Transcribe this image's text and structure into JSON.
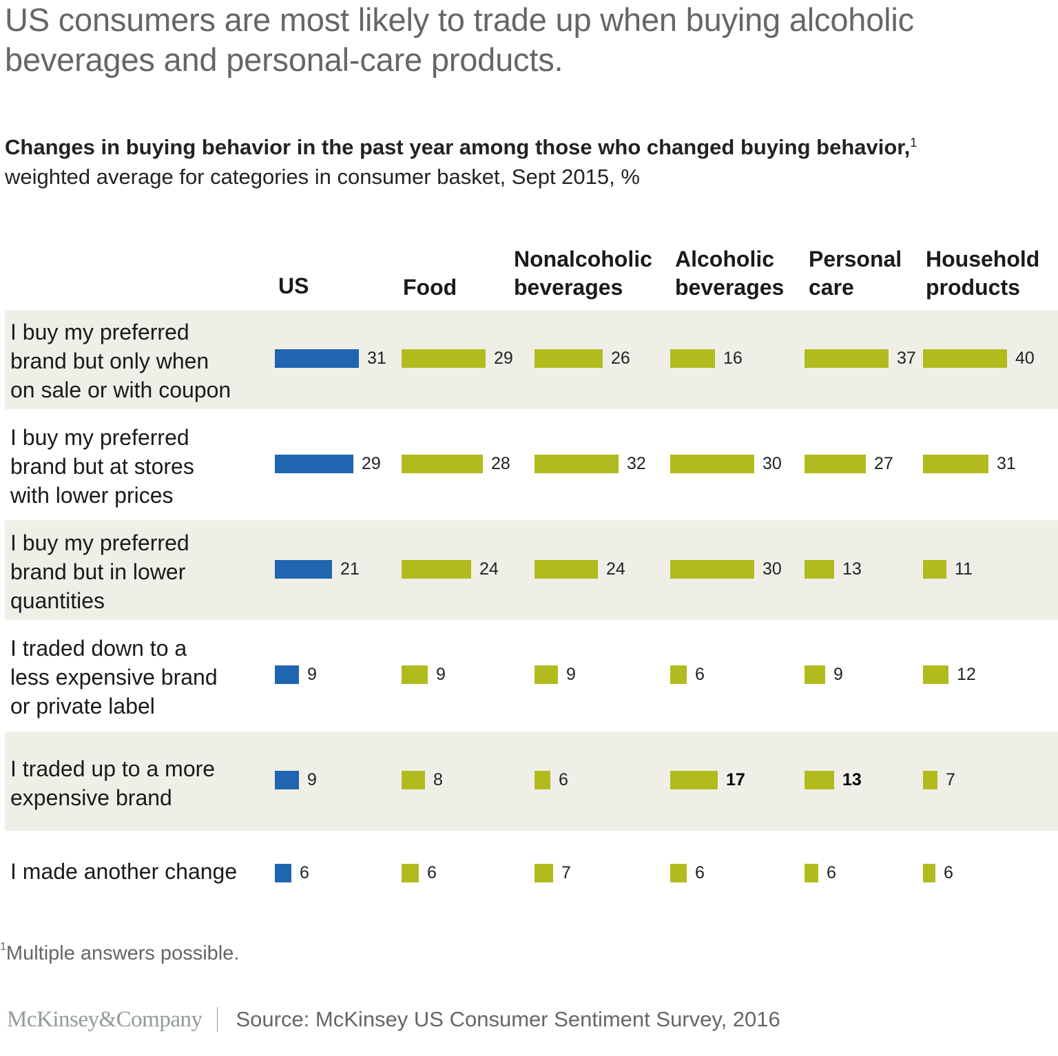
{
  "title": "US consumers are most likely to trade up when buying alcoholic beverages and personal-care products.",
  "subtitle": {
    "bold": "Changes in buying behavior in the past year among those who changed buying behavior,",
    "superscript": "1",
    "rest": "weighted average for categories in consumer basket, Sept 2015, %"
  },
  "colors": {
    "us": "#1F65B0",
    "category": "#B2BB1E",
    "shaded_row": "#EFEFE8"
  },
  "chart_data": {
    "type": "bar",
    "orientation": "horizontal",
    "title": "Changes in buying behavior in the past year among those who changed buying behavior, weighted average for categories in consumer basket, Sept 2015, %",
    "columns": [
      {
        "line1": "",
        "line2": "US"
      },
      {
        "line1": "",
        "line2": "Food"
      },
      {
        "line1": "Nonalcoholic",
        "line2": "beverages"
      },
      {
        "line1": "Alcoholic",
        "line2": "beverages"
      },
      {
        "line1": "Personal",
        "line2": "care"
      },
      {
        "line1": "Household",
        "line2": "products"
      }
    ],
    "series_names": [
      "US",
      "Food",
      "Nonalcoholic beverages",
      "Alcoholic beverages",
      "Personal care",
      "Household products"
    ],
    "categories": [
      "I buy my preferred brand but only when on sale or with coupon",
      "I buy my preferred brand but at stores with lower prices",
      "I buy my preferred brand but in lower quantities",
      "I traded down to a less expensive brand or private label",
      "I traded up to a more expensive brand",
      "I made another change"
    ],
    "rows": [
      {
        "label_lines": [
          "I buy my preferred",
          "brand but only when",
          "on sale or with coupon"
        ],
        "values": [
          31,
          29,
          26,
          16,
          37,
          40
        ],
        "bold": [
          false,
          false,
          false,
          false,
          false,
          false
        ]
      },
      {
        "label_lines": [
          "I buy my preferred",
          "brand but at stores",
          "with lower prices"
        ],
        "values": [
          29,
          28,
          32,
          30,
          27,
          31
        ],
        "bold": [
          false,
          false,
          false,
          false,
          false,
          false
        ]
      },
      {
        "label_lines": [
          "I buy my preferred",
          "brand but in lower",
          "quantities"
        ],
        "values": [
          21,
          24,
          24,
          30,
          13,
          11
        ],
        "bold": [
          false,
          false,
          false,
          false,
          false,
          false
        ]
      },
      {
        "label_lines": [
          "I traded down to a",
          "less expensive brand",
          "or private label"
        ],
        "values": [
          9,
          9,
          9,
          6,
          9,
          12
        ],
        "bold": [
          false,
          false,
          false,
          false,
          false,
          false
        ]
      },
      {
        "label_lines": [
          "I traded up to a more",
          "expensive brand"
        ],
        "values": [
          9,
          8,
          6,
          17,
          13,
          7
        ],
        "bold": [
          false,
          false,
          false,
          true,
          true,
          false
        ]
      },
      {
        "label_lines": [
          "I made another change"
        ],
        "values": [
          6,
          6,
          7,
          6,
          6,
          6
        ],
        "bold": [
          false,
          false,
          false,
          false,
          false,
          false
        ]
      }
    ],
    "unit": "%",
    "axis": "none",
    "grid": false,
    "legend": "none"
  },
  "footnote": {
    "marker": "1",
    "text": "Multiple answers possible."
  },
  "footer": {
    "logo": "McKinsey&Company",
    "source": "Source: McKinsey US Consumer Sentiment Survey, 2016"
  }
}
